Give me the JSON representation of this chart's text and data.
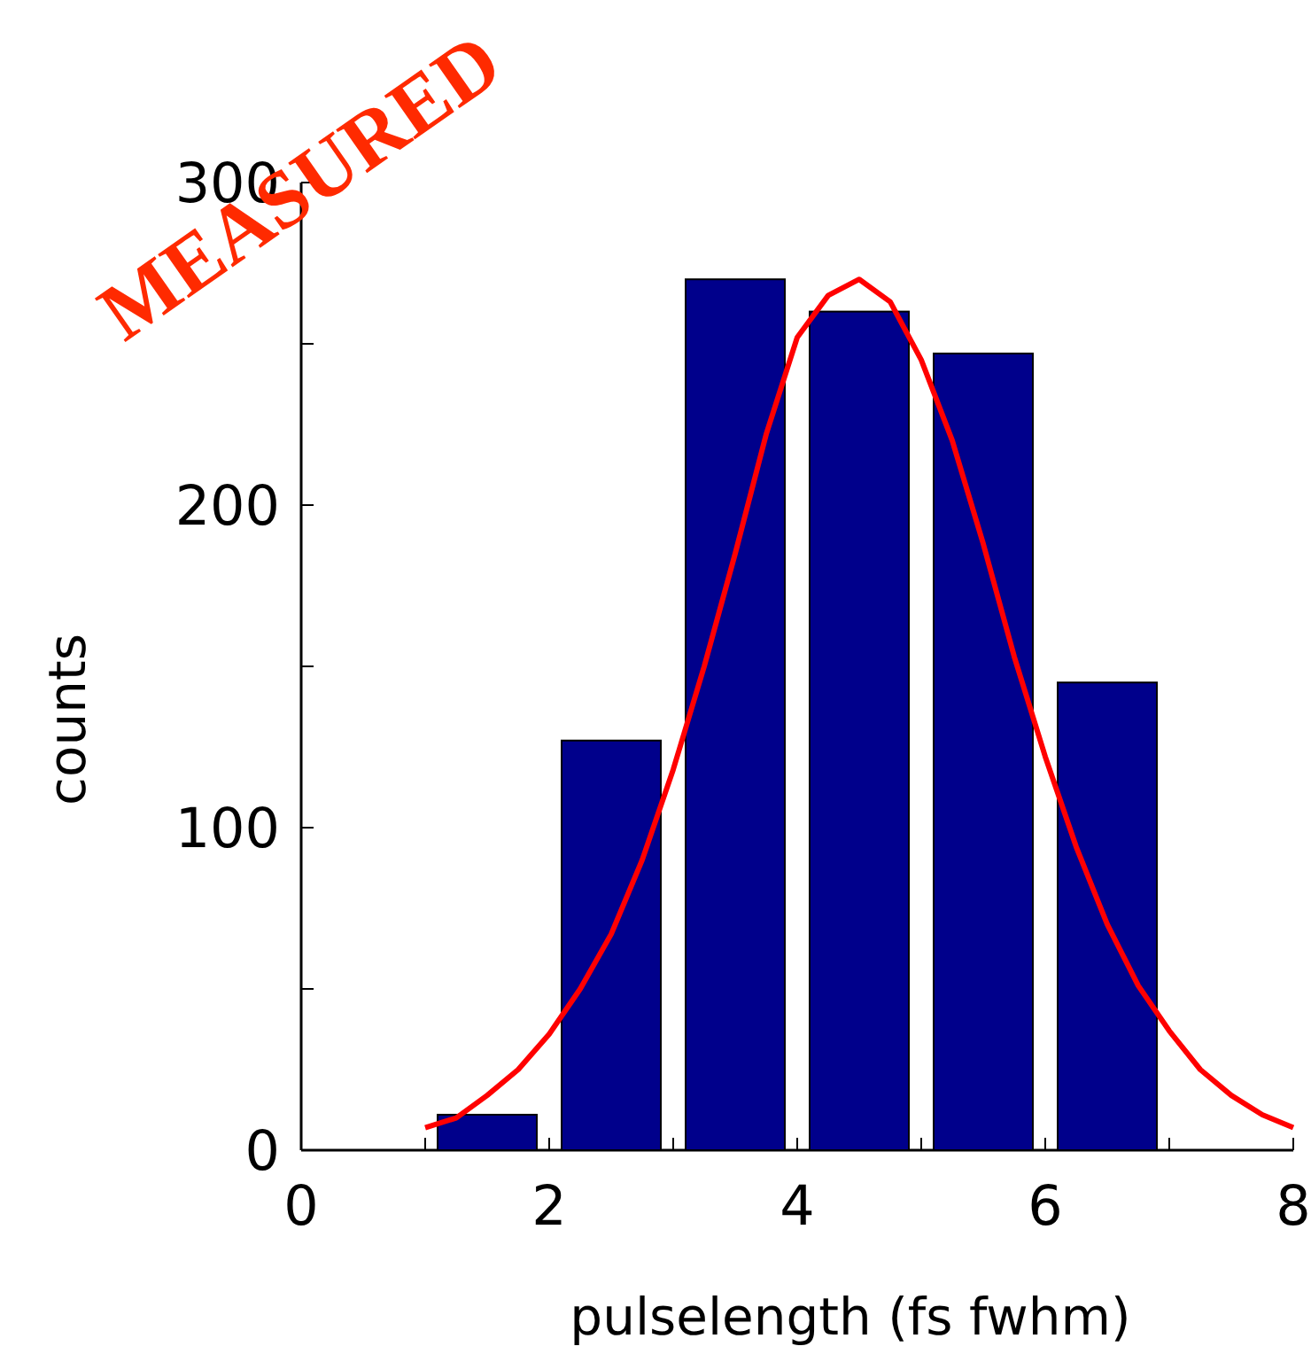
{
  "chart_data": {
    "type": "histogram",
    "xlabel": "pulselength (fs fwhm)",
    "ylabel": "counts",
    "annotations": [
      "MEASURED"
    ],
    "bins": [
      1,
      2,
      3,
      4,
      5,
      6,
      7
    ],
    "values": [
      11,
      127,
      270,
      260,
      247,
      145
    ],
    "color": "#00008b",
    "xlim": [
      0,
      8
    ],
    "ylim": [
      0,
      300
    ],
    "xticks": [
      0,
      {
        "value": 1,
        "label": null
      },
      2,
      {
        "value": 3,
        "label": null
      },
      4,
      {
        "value": 5,
        "label": null
      },
      6,
      {
        "value": 7,
        "label": null
      },
      8
    ],
    "yticks": [
      0,
      {
        "value": 50,
        "label": null
      },
      100,
      {
        "value": 150,
        "label": null
      },
      200,
      {
        "value": 250,
        "label": null
      },
      300
    ],
    "series": [
      {
        "type": "line",
        "color": "#ff0000",
        "x": [
          1,
          1.25,
          1.5,
          1.75,
          2,
          2.25,
          2.5,
          2.75,
          3,
          3.25,
          3.5,
          3.75,
          4,
          4.25,
          4.5,
          4.75,
          5,
          5.25,
          5.5,
          5.75,
          6,
          6.25,
          6.5,
          6.75,
          7,
          7.25,
          7.5,
          7.75,
          8
        ],
        "values": [
          7,
          10,
          17,
          25,
          36,
          50,
          67,
          90,
          118,
          150,
          185,
          222,
          252,
          265,
          270,
          263,
          245,
          220,
          188,
          153,
          122,
          94,
          70,
          51,
          37,
          25,
          17,
          11,
          7
        ]
      }
    ]
  }
}
